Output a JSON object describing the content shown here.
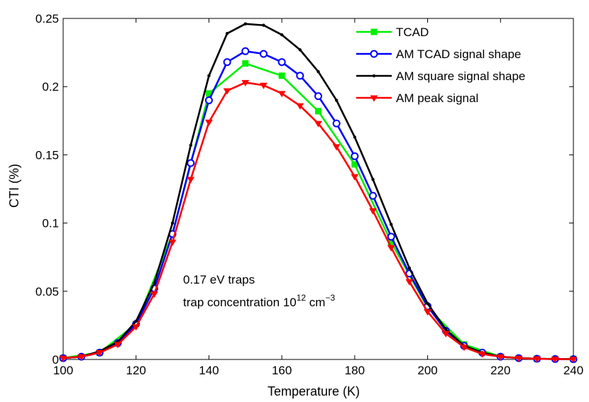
{
  "chart_data": {
    "type": "line",
    "title": "",
    "xlabel": "Temperature (K)",
    "ylabel": "CTI (%)",
    "xlim": [
      100,
      240
    ],
    "ylim": [
      0,
      0.25
    ],
    "xticks": [
      100,
      120,
      140,
      160,
      180,
      200,
      220,
      240
    ],
    "yticks": [
      0,
      0.05,
      0.1,
      0.15,
      0.2,
      0.25
    ],
    "xtick_labels": [
      "100",
      "120",
      "140",
      "160",
      "180",
      "200",
      "220",
      "240"
    ],
    "ytick_labels": [
      "0",
      "0.05",
      "0.1",
      "0.15",
      "0.2",
      "0.25"
    ],
    "grid": false,
    "legend_position": "top-right",
    "annotation": {
      "line1": "0.17 eV traps",
      "line2_prefix": "trap concentration 10",
      "line2_exp1": "12",
      "line2_mid": " cm",
      "line2_exp2": "−3"
    },
    "series": [
      {
        "name": "TCAD",
        "color": "#00ee00",
        "marker": "square",
        "x": [
          100,
          110,
          120,
          130,
          140,
          150,
          160,
          170,
          180,
          190,
          200,
          210,
          220,
          230,
          240
        ],
        "values": [
          0.001,
          0.005,
          0.026,
          0.092,
          0.195,
          0.217,
          0.208,
          0.182,
          0.143,
          0.086,
          0.038,
          0.011,
          0.002,
          0.0005,
          0.0003
        ]
      },
      {
        "name": "AM TCAD signal shape",
        "color": "#0000ff",
        "marker": "circle",
        "x": [
          100,
          105,
          110,
          115,
          120,
          125,
          130,
          135,
          140,
          145,
          150,
          155,
          160,
          165,
          170,
          175,
          180,
          185,
          190,
          195,
          200,
          205,
          210,
          215,
          220,
          225,
          230,
          235,
          240
        ],
        "values": [
          0.001,
          0.002,
          0.005,
          0.012,
          0.026,
          0.052,
          0.092,
          0.144,
          0.19,
          0.218,
          0.226,
          0.224,
          0.218,
          0.208,
          0.193,
          0.173,
          0.149,
          0.12,
          0.09,
          0.063,
          0.039,
          0.021,
          0.01,
          0.005,
          0.002,
          0.001,
          0.0005,
          0.0003,
          0.0002
        ]
      },
      {
        "name": "AM square signal shape",
        "color": "#000000",
        "marker": "dot",
        "x": [
          100,
          105,
          110,
          115,
          120,
          125,
          130,
          135,
          140,
          145,
          150,
          155,
          160,
          165,
          170,
          175,
          180,
          185,
          190,
          195,
          200,
          205,
          210,
          215,
          220,
          225,
          230,
          235,
          240
        ],
        "values": [
          0.001,
          0.002,
          0.006,
          0.013,
          0.028,
          0.056,
          0.1,
          0.157,
          0.208,
          0.239,
          0.246,
          0.245,
          0.238,
          0.227,
          0.211,
          0.19,
          0.163,
          0.132,
          0.099,
          0.067,
          0.041,
          0.022,
          0.01,
          0.005,
          0.002,
          0.001,
          0.0005,
          0.0003,
          0.0002
        ]
      },
      {
        "name": "AM peak signal",
        "color": "#ff0000",
        "marker": "triangle-down",
        "x": [
          100,
          105,
          110,
          115,
          120,
          125,
          130,
          135,
          140,
          145,
          150,
          155,
          160,
          165,
          170,
          175,
          180,
          185,
          190,
          195,
          200,
          205,
          210,
          215,
          220,
          225,
          230,
          235,
          240
        ],
        "values": [
          0.001,
          0.002,
          0.005,
          0.011,
          0.024,
          0.048,
          0.086,
          0.132,
          0.174,
          0.197,
          0.203,
          0.201,
          0.195,
          0.186,
          0.173,
          0.156,
          0.134,
          0.109,
          0.082,
          0.057,
          0.035,
          0.019,
          0.009,
          0.004,
          0.002,
          0.001,
          0.0005,
          0.0003,
          0.0002
        ]
      }
    ]
  }
}
